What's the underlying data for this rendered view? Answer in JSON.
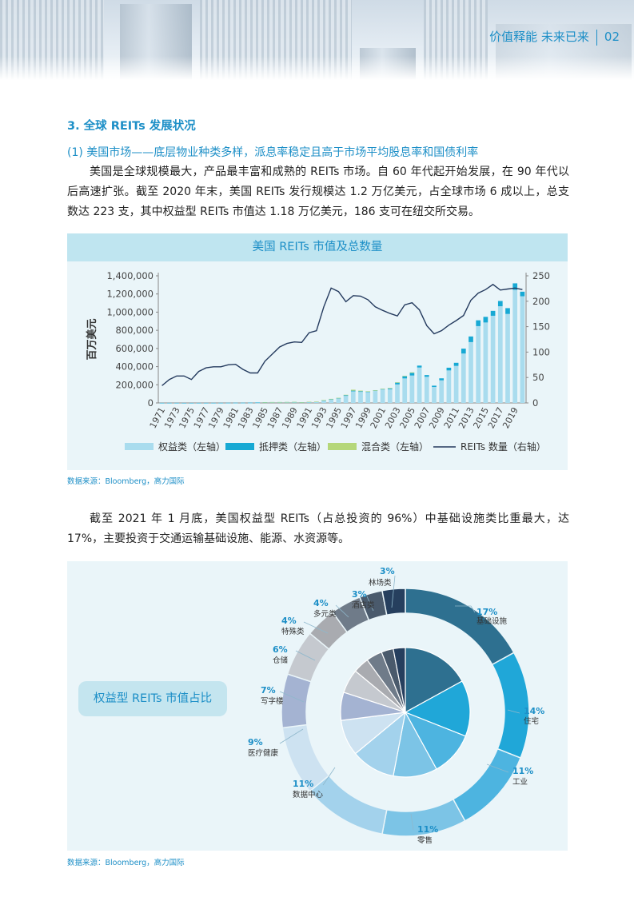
{
  "header": {
    "title": "价值释能 未来已来",
    "page_number": "02"
  },
  "section_title": "3. 全球 REITs 发展状况",
  "subsection_title": "(1) 美国市场——底层物业种类多样，派息率稳定且高于市场平均股息率和国债利率",
  "paragraph1": "美国是全球规模最大，产品最丰富和成熟的 REITs 市场。自 60 年代起开始发展，在 90 年代以后高速扩张。截至 2020 年末，美国 REITs 发行规模达 1.2 万亿美元，占全球市场 6 成以上，总支数达 223 支，其中权益型 REITs 市值达 1.18 万亿美元，186 支可在纽交所交易。",
  "paragraph2": "截至 2021 年 1 月底，美国权益型 REITs（占总投资的 96%）中基础设施类比重最大，达 17%，主要投资于交通运输基础设施、能源、水资源等。",
  "source1": "数据来源：Bloomberg，高力国际",
  "source2": "数据来源：Bloomberg，高力国际",
  "colors": {
    "accent": "#1d8fc7",
    "equity": "#a9dcee",
    "mortgage": "#17a9d4",
    "hybrid": "#b5d77a",
    "line": "#243a5e"
  },
  "chart_data": [
    {
      "type": "bar",
      "title": "美国 REITs 市值及总数量",
      "ylabel": "百万美元",
      "y2label": "",
      "ylim": [
        0,
        1400000
      ],
      "y2lim": [
        0,
        250
      ],
      "y_ticks": [
        "1,400,000",
        "1,200,000",
        "1,000,000",
        "800,000",
        "600,000",
        "400,000",
        "200,000",
        "0"
      ],
      "y2_ticks": [
        "250",
        "200",
        "150",
        "100",
        "50",
        "0"
      ],
      "x_tick_labels": [
        "1971",
        "1973",
        "1975",
        "1977",
        "1979",
        "1981",
        "1983",
        "1985",
        "1987",
        "1989",
        "1991",
        "1993",
        "1995",
        "1997",
        "1999",
        "2001",
        "2003",
        "2005",
        "2007",
        "2009",
        "2011",
        "2013",
        "2015",
        "2017",
        "2019"
      ],
      "legend_position": "bottom",
      "x": [
        1971,
        1972,
        1973,
        1974,
        1975,
        1976,
        1977,
        1978,
        1979,
        1980,
        1981,
        1982,
        1983,
        1984,
        1985,
        1986,
        1987,
        1988,
        1989,
        1990,
        1991,
        1992,
        1993,
        1994,
        1995,
        1996,
        1997,
        1998,
        1999,
        2000,
        2001,
        2002,
        2003,
        2004,
        2005,
        2006,
        2007,
        2008,
        2009,
        2010,
        2011,
        2012,
        2013,
        2014,
        2015,
        2016,
        2017,
        2018,
        2019,
        2020
      ],
      "series": [
        {
          "name": "权益类（左轴）",
          "kind": "bar",
          "axis": "left",
          "values": [
            300,
            300,
            300,
            200,
            200,
            300,
            400,
            500,
            600,
            900,
            1100,
            1000,
            1500,
            2800,
            5000,
            6000,
            6500,
            7200,
            8400,
            6000,
            10000,
            11000,
            26000,
            38000,
            49000,
            78000,
            128000,
            122000,
            120000,
            134000,
            148000,
            151000,
            204000,
            270000,
            302000,
            390000,
            288000,
            176000,
            249000,
            358000,
            408000,
            544000,
            670000,
            846000,
            886000,
            960000,
            1065000,
            980000,
            1245000,
            1175000
          ]
        },
        {
          "name": "抵押类（左轴）",
          "kind": "bar",
          "axis": "left",
          "values": [
            600,
            700,
            700,
            400,
            500,
            600,
            600,
            600,
            700,
            1000,
            1300,
            1300,
            1700,
            2000,
            2400,
            3000,
            2500,
            2400,
            2300,
            1900,
            2200,
            2400,
            3300,
            4000,
            5000,
            7000,
            7600,
            7000,
            6000,
            6000,
            7000,
            12000,
            21000,
            25000,
            29000,
            21000,
            19000,
            14000,
            22000,
            30000,
            34000,
            54000,
            62000,
            64000,
            62000,
            54000,
            58000,
            64000,
            72000,
            50000
          ]
        },
        {
          "name": "混合类（左轴）",
          "kind": "bar",
          "axis": "left",
          "values": [
            0,
            0,
            0,
            0,
            0,
            0,
            0,
            0,
            0,
            0,
            0,
            0,
            0,
            0,
            600,
            800,
            1000,
            900,
            900,
            900,
            1000,
            1000,
            2500,
            3000,
            2000,
            5000,
            10000,
            7000,
            3000,
            1000,
            1000,
            1000,
            2000,
            3000,
            6000,
            0,
            0,
            0,
            0,
            0,
            0,
            0,
            0,
            0,
            0,
            0,
            0,
            0,
            0,
            0
          ]
        },
        {
          "name": "REITs 数量（右轴）",
          "kind": "line",
          "axis": "right",
          "values": [
            34,
            46,
            53,
            53,
            46,
            62,
            69,
            71,
            71,
            75,
            76,
            66,
            59,
            59,
            82,
            96,
            110,
            117,
            120,
            119,
            138,
            142,
            189,
            226,
            219,
            199,
            211,
            210,
            203,
            189,
            182,
            176,
            171,
            193,
            197,
            183,
            152,
            136,
            142,
            153,
            162,
            172,
            202,
            216,
            223,
            233,
            222,
            224,
            226,
            223
          ]
        }
      ]
    },
    {
      "type": "pie",
      "title": "权益型 REITs 市值占比",
      "slices": [
        {
          "name": "基础设施",
          "value": 17,
          "label": "17%",
          "color": "#2e7090"
        },
        {
          "name": "住宅",
          "value": 14,
          "label": "14%",
          "color": "#20a7d8"
        },
        {
          "name": "工业",
          "value": 11,
          "label": "11%",
          "color": "#4db4e0"
        },
        {
          "name": "零售",
          "value": 11,
          "label": "11%",
          "color": "#7cc4e6"
        },
        {
          "name": "数据中心",
          "value": 11,
          "label": "11%",
          "color": "#a3d2ec"
        },
        {
          "name": "医疗健康",
          "value": 9,
          "label": "9%",
          "color": "#cde2f1"
        },
        {
          "name": "写字楼",
          "value": 7,
          "label": "7%",
          "color": "#a4b3d2"
        },
        {
          "name": "仓储",
          "value": 6,
          "label": "6%",
          "color": "#c5c9cf"
        },
        {
          "name": "特殊类",
          "value": 4,
          "label": "4%",
          "color": "#a9abb0"
        },
        {
          "name": "多元类",
          "value": 4,
          "label": "4%",
          "color": "#6f7b89"
        },
        {
          "name": "酒店类",
          "value": 3,
          "label": "3%",
          "color": "#4a5a6c"
        },
        {
          "name": "林场类",
          "value": 3,
          "label": "3%",
          "color": "#263f5e"
        }
      ]
    }
  ]
}
